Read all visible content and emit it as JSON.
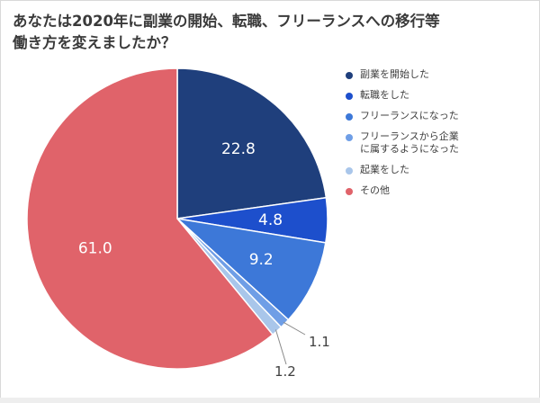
{
  "chart_data": {
    "type": "pie",
    "title": "あなたは2020年に副業の開始、転職、フリーランスへの移行等\n働き方を変えましたか？",
    "start_angle": "12 o'clock",
    "direction": "clockwise",
    "legend_position": "right",
    "slices": [
      {
        "label": "副業を開始した",
        "value": 22.8,
        "color": "#1f3f7c",
        "value_label": "22.8"
      },
      {
        "label": "転職をした",
        "value": 4.8,
        "color": "#1d4fcc",
        "value_label": "4.8"
      },
      {
        "label": "フリーランスになった",
        "value": 9.2,
        "color": "#3d78d8",
        "value_label": "9.2"
      },
      {
        "label": "フリーランスから企業\nに属するようになった",
        "value": 1.1,
        "color": "#6f9ee6",
        "value_label": "1.1"
      },
      {
        "label": "起業をした",
        "value": 1.2,
        "color": "#a9c6ea",
        "value_label": "1.2"
      },
      {
        "label": "その他",
        "value": 61.0,
        "color": "#e0636a",
        "value_label": "61.0"
      }
    ]
  }
}
